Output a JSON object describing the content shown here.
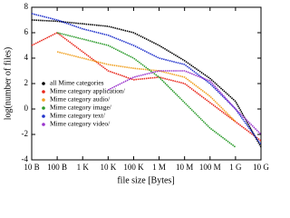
{
  "chart_data": {
    "type": "line",
    "x_label": "file size [Bytes]",
    "y_label": "log(number of files)",
    "x": [
      10,
      100,
      1000,
      10000,
      100000,
      1000000,
      10000000,
      100000000,
      1000000000,
      10000000000
    ],
    "series": [
      {
        "name": "all Mime categories",
        "color": "#000000",
        "values": [
          7.0,
          6.9,
          6.7,
          6.5,
          6.0,
          5.0,
          3.8,
          2.4,
          0.6,
          -3.0
        ]
      },
      {
        "name": "Mime category application/",
        "color": "#e8261a",
        "values": [
          5.0,
          6.0,
          4.5,
          3.0,
          2.3,
          2.5,
          2.0,
          0.5,
          -1.0,
          -2.5
        ]
      },
      {
        "name": "Mime category audio/",
        "color": "#f0a020",
        "values": [
          null,
          4.5,
          4.0,
          3.5,
          3.2,
          3.0,
          2.5,
          1.0,
          -1.0,
          null
        ]
      },
      {
        "name": "Mime category image/",
        "color": "#2a9a2a",
        "values": [
          null,
          6.0,
          5.5,
          5.0,
          4.0,
          2.5,
          0.5,
          -1.5,
          -3.0,
          null
        ]
      },
      {
        "name": "Mime category text/",
        "color": "#2233cc",
        "values": [
          7.5,
          7.0,
          6.3,
          5.8,
          5.0,
          4.0,
          3.5,
          2.0,
          0.0,
          -2.8
        ]
      },
      {
        "name": "Mime category video/",
        "color": "#9933cc",
        "values": [
          null,
          null,
          null,
          1.5,
          2.5,
          3.0,
          3.0,
          2.2,
          0.0,
          -2.0
        ]
      }
    ],
    "xscale": "log",
    "xlim": [
      10,
      10000000000
    ],
    "xticks": [
      {
        "value": 10,
        "label": "10 B"
      },
      {
        "value": 100,
        "label": "100 B"
      },
      {
        "value": 1000,
        "label": "1 K"
      },
      {
        "value": 10000,
        "label": "10 K"
      },
      {
        "value": 100000,
        "label": "100 K"
      },
      {
        "value": 1000000,
        "label": "1 M"
      },
      {
        "value": 10000000,
        "label": "10 M"
      },
      {
        "value": 100000000,
        "label": "100 M"
      },
      {
        "value": 1000000000,
        "label": "1 G"
      },
      {
        "value": 10000000000,
        "label": "10 G"
      }
    ],
    "ylim": [
      -4,
      8
    ],
    "yticks": [
      -4,
      -2,
      0,
      2,
      4,
      6,
      8
    ],
    "grid": false,
    "legend": "lower left"
  }
}
